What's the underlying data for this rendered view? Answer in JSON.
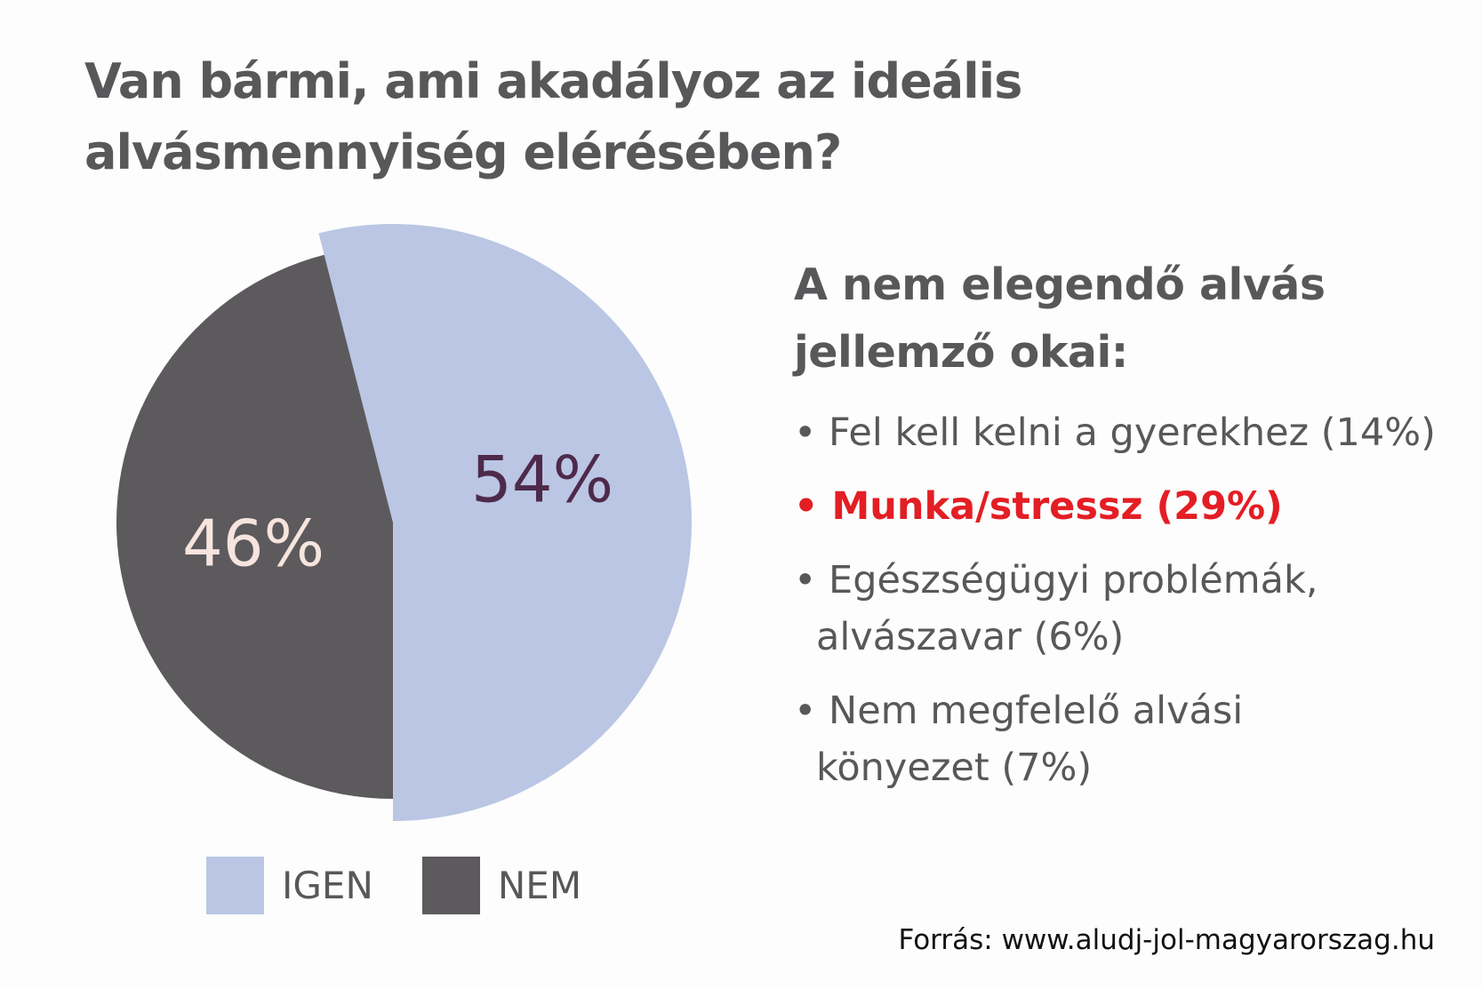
{
  "title": "Van bármi, ami akadályoz az ideális alvásmennyiség elérésében?",
  "chart_data": {
    "type": "pie",
    "title": "Van bármi, ami akadályoz az ideális alvásmennyiség elérésében?",
    "slices": [
      {
        "label": "IGEN",
        "value": 54,
        "value_label": "54%",
        "color": "#bac6e4",
        "label_color": "#4e2a4a"
      },
      {
        "label": "NEM",
        "value": 46,
        "value_label": "46%",
        "color": "#5c5a5c",
        "label_color": "#f7e4de"
      }
    ],
    "legend_position": "bottom"
  },
  "reasons": {
    "title": "A nem elegendő alvás jellemző okai:",
    "items": [
      {
        "text": "Fel kell kelni a gyerekhez (14%)",
        "highlight": false
      },
      {
        "text": "Munka/stressz (29%)",
        "highlight": true
      },
      {
        "text": "Egészségügyi problémák, alvászavar (6%)",
        "highlight": false
      },
      {
        "text": "Nem megfelelő alvási könyezet (7%)",
        "highlight": false
      }
    ],
    "bullet": "•"
  },
  "source": "Forrás: www.aludj-jol-magyarorszag.hu"
}
